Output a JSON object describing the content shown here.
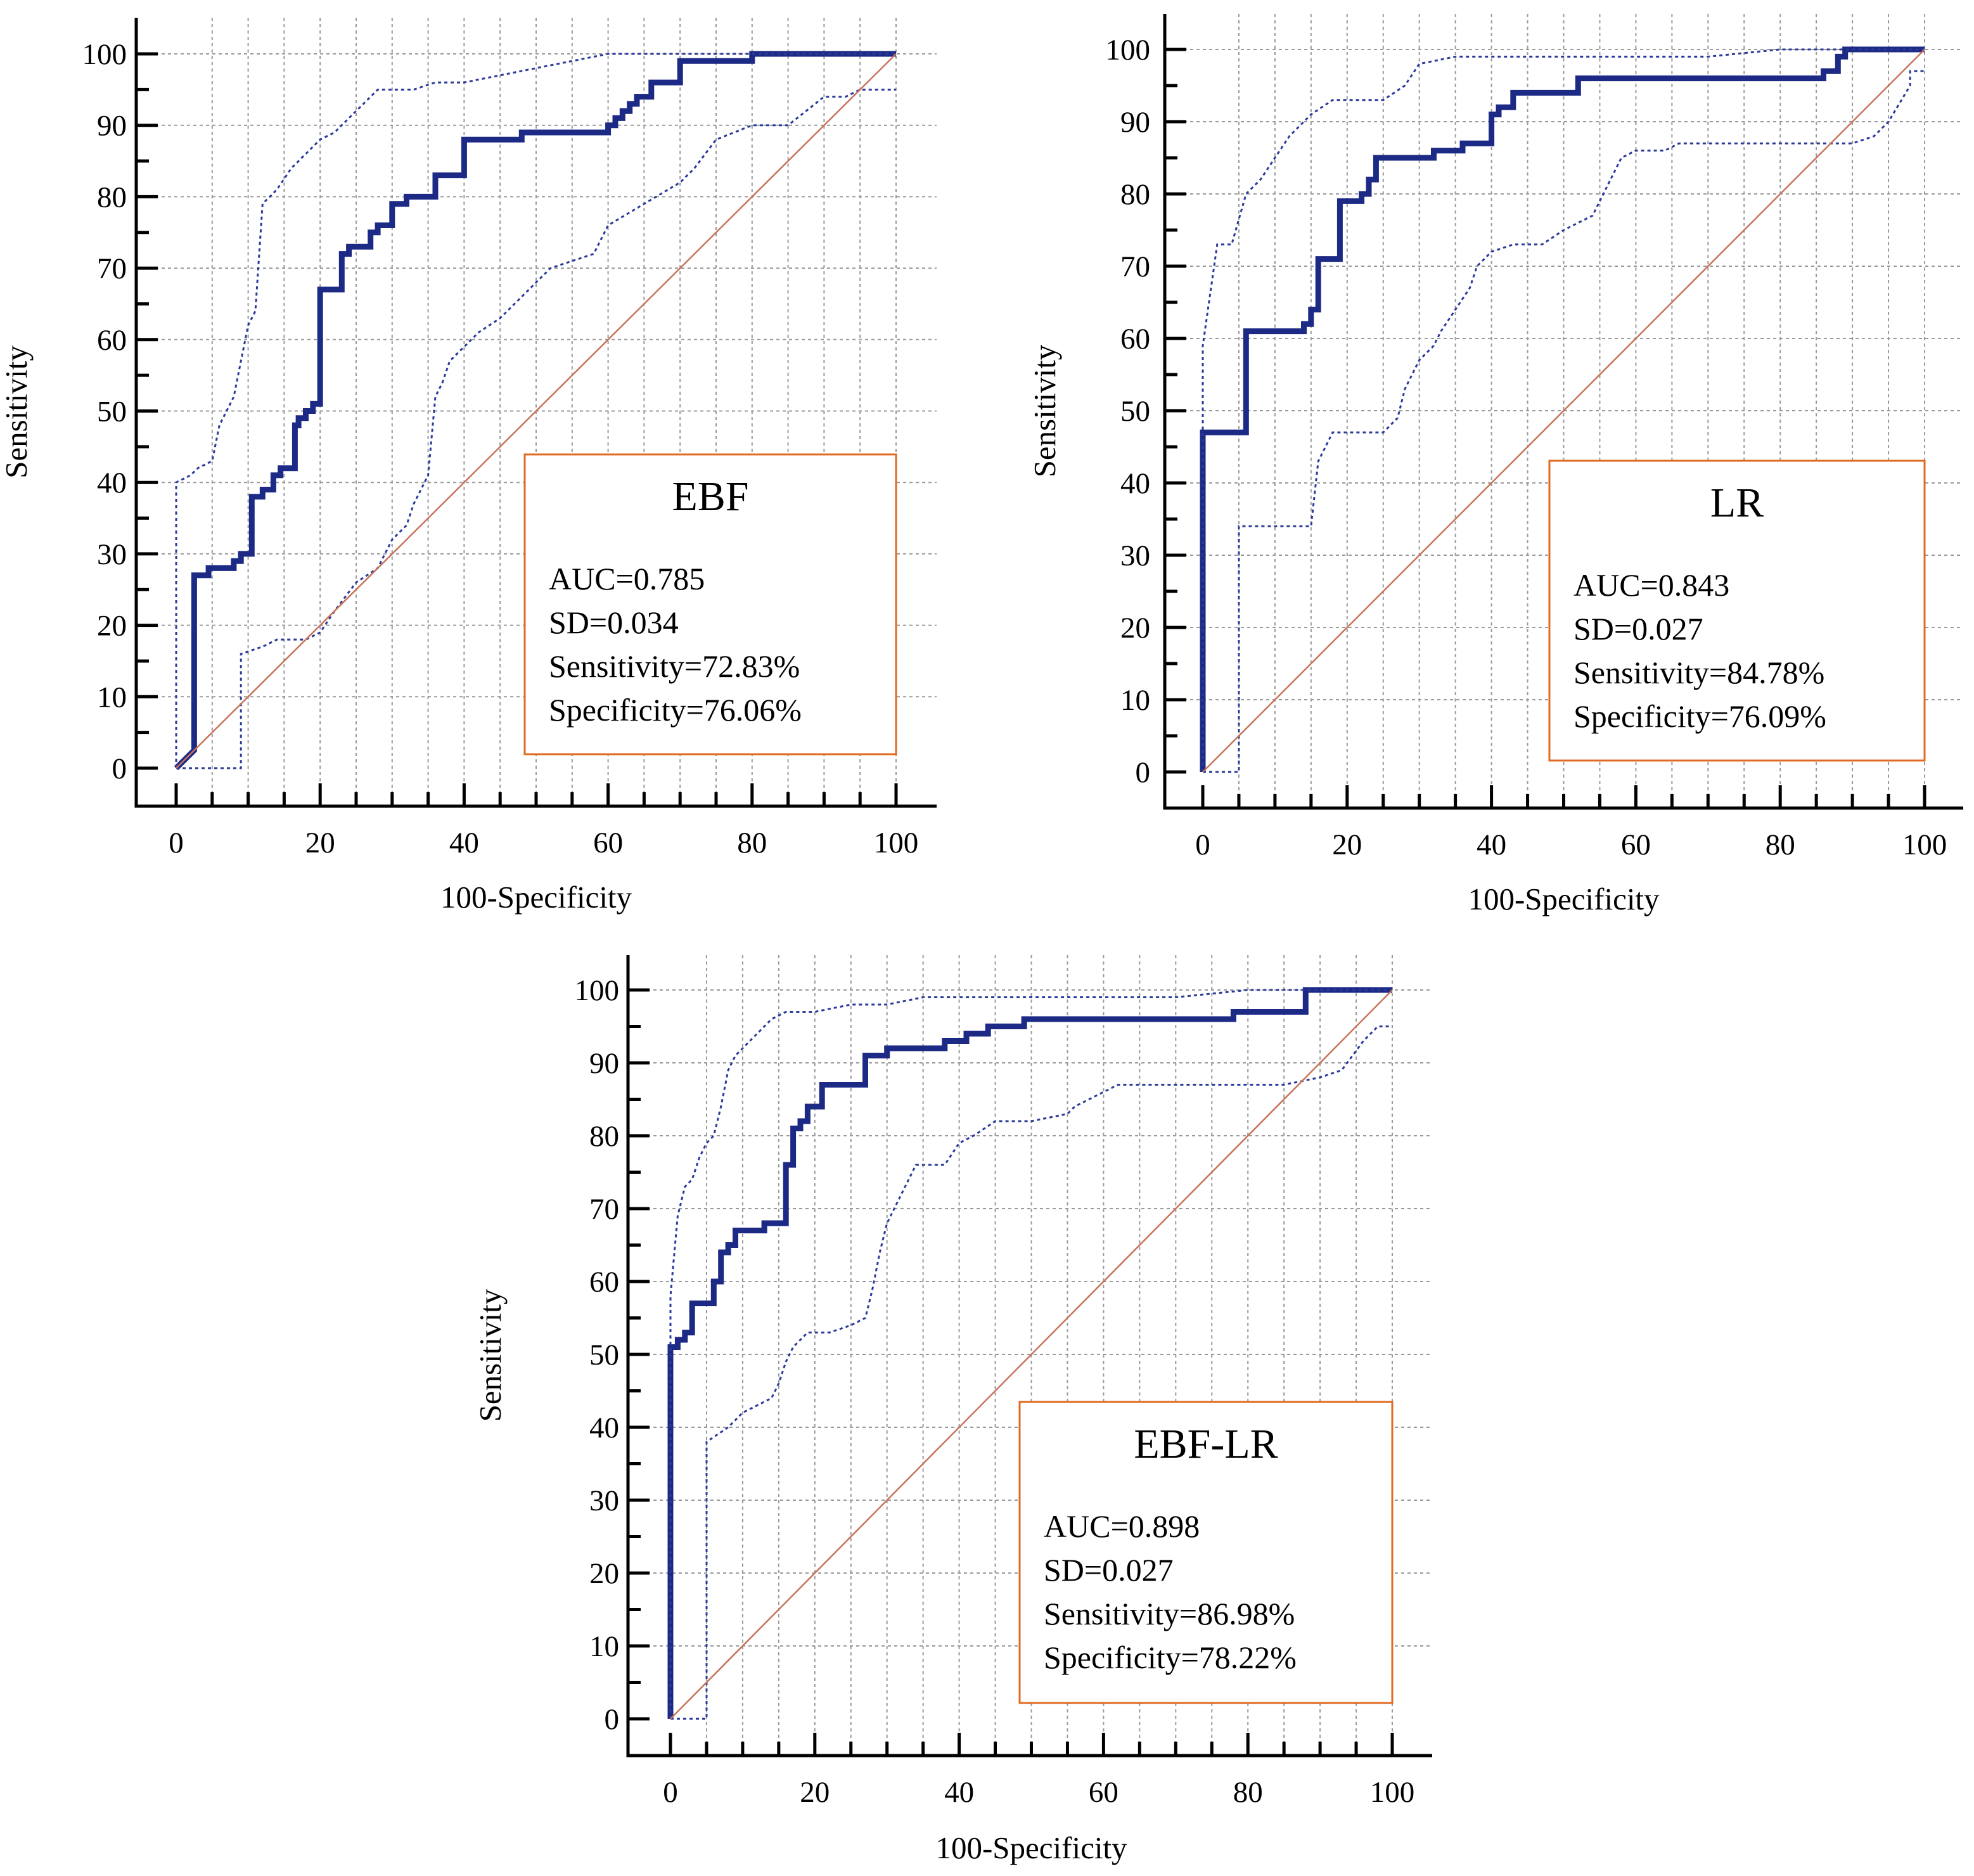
{
  "chart_data": [
    {
      "type": "line",
      "title": "EBF",
      "xlabel": "100-Specificity",
      "ylabel": "Sensitivity",
      "xlim": [
        0,
        100
      ],
      "ylim": [
        0,
        100
      ],
      "xticks": [
        "0",
        "20",
        "40",
        "60",
        "80",
        "100"
      ],
      "yticks": [
        "0",
        "10",
        "20",
        "30",
        "40",
        "50",
        "60",
        "70",
        "80",
        "90",
        "100"
      ],
      "stats": [
        "AUC=0.785",
        "SD=0.034",
        "Sensitivity=72.83%",
        "Specificity=76.06%"
      ],
      "series": [
        {
          "name": "ROC curve",
          "x": [
            0,
            1,
            1,
            2.5,
            2.5,
            4.5,
            4.5,
            8,
            8,
            9,
            9,
            10.5,
            10.5,
            12,
            12,
            13.5,
            13.5,
            14.5,
            14.5,
            16.5,
            16.5,
            17,
            17,
            18,
            18,
            19,
            19,
            20,
            20,
            21,
            21,
            23,
            23,
            24,
            24,
            27,
            27,
            28,
            28,
            30,
            30,
            32,
            32,
            36,
            36,
            40,
            40,
            48,
            48,
            60,
            60,
            61,
            61,
            62,
            62,
            63,
            63,
            64,
            64,
            66,
            66,
            70,
            70,
            80,
            80,
            100
          ],
          "y": [
            0,
            1,
            1,
            2.5,
            27,
            27,
            28,
            28,
            29,
            29,
            30,
            30,
            38,
            38,
            39,
            39,
            41,
            41,
            42,
            42,
            48,
            48,
            49,
            49,
            50,
            50,
            51,
            51,
            67,
            67,
            67,
            67,
            72,
            72,
            73,
            73,
            75,
            75,
            76,
            76,
            79,
            79,
            80,
            80,
            83,
            83,
            88,
            88,
            89,
            89,
            90,
            90,
            91,
            91,
            92,
            92,
            93,
            93,
            94,
            94,
            96,
            96,
            99,
            99,
            100,
            100
          ]
        },
        {
          "name": "Upper 95% CI",
          "x": [
            0,
            0,
            2,
            3,
            5,
            6,
            8,
            9,
            10,
            11,
            12,
            14,
            16,
            18,
            19,
            20,
            22,
            24,
            26,
            28,
            30,
            33,
            36,
            40,
            45,
            50,
            55,
            60,
            70,
            80,
            100
          ],
          "y": [
            0,
            40,
            41,
            42,
            43,
            48,
            52,
            57,
            62,
            64,
            79,
            81,
            84,
            86,
            87,
            88,
            89,
            91,
            93,
            95,
            95,
            95,
            96,
            96,
            97,
            98,
            99,
            100,
            100,
            100,
            100
          ]
        },
        {
          "name": "Lower 95% CI",
          "x": [
            0,
            9,
            9,
            12,
            14,
            15,
            18,
            20,
            22,
            25,
            28,
            30,
            32,
            33,
            35,
            36,
            37,
            38,
            40,
            42,
            45,
            48,
            50,
            52,
            55,
            58,
            60,
            65,
            70,
            72,
            75,
            80,
            85,
            90,
            93,
            95,
            98,
            100
          ],
          "y": [
            0,
            0,
            16,
            17,
            18,
            18,
            18,
            19,
            22,
            26,
            28,
            32,
            34,
            37,
            41,
            52,
            54,
            57,
            59,
            61,
            63,
            66,
            68,
            70,
            71,
            72,
            76,
            79,
            82,
            84,
            88,
            90,
            90,
            94,
            94,
            95,
            95,
            95
          ]
        },
        {
          "name": "Reference",
          "x": [
            0,
            100
          ],
          "y": [
            0,
            100
          ]
        }
      ]
    },
    {
      "type": "line",
      "title": "LR",
      "xlabel": "100-Specificity",
      "ylabel": "Sensitivity",
      "xlim": [
        0,
        100
      ],
      "ylim": [
        0,
        100
      ],
      "xticks": [
        "0",
        "20",
        "40",
        "60",
        "80",
        "100"
      ],
      "yticks": [
        "0",
        "10",
        "20",
        "30",
        "40",
        "50",
        "60",
        "70",
        "80",
        "90",
        "100"
      ],
      "stats": [
        "AUC=0.843",
        "SD=0.027",
        "Sensitivity=84.78%",
        "Specificity=76.09%"
      ],
      "series": [
        {
          "name": "ROC curve",
          "x": [
            0,
            0,
            6,
            6,
            14,
            14,
            15,
            15,
            16,
            16,
            19,
            19,
            22,
            22,
            23,
            23,
            24,
            24,
            32,
            32,
            36,
            36,
            40,
            40,
            41,
            41,
            43,
            43,
            52,
            52,
            86,
            86,
            88,
            88,
            89,
            89,
            100
          ],
          "y": [
            0,
            47,
            47,
            61,
            61,
            62,
            62,
            64,
            64,
            71,
            71,
            79,
            79,
            80,
            80,
            82,
            82,
            85,
            85,
            86,
            86,
            87,
            87,
            91,
            91,
            92,
            92,
            94,
            94,
            96,
            96,
            97,
            97,
            99,
            99,
            100,
            100
          ]
        },
        {
          "name": "Upper 95% CI",
          "x": [
            0,
            0,
            2,
            4,
            6,
            8,
            10,
            12,
            15,
            18,
            20,
            25,
            28,
            30,
            35,
            40,
            50,
            60,
            70,
            80,
            90,
            100
          ],
          "y": [
            0,
            59,
            73,
            73,
            80,
            82,
            85,
            88,
            91,
            93,
            93,
            93,
            95,
            98,
            99,
            99,
            99,
            99,
            99,
            100,
            100,
            100
          ]
        },
        {
          "name": "Lower 95% CI",
          "x": [
            0,
            5,
            5,
            15,
            16,
            18,
            22,
            25,
            27,
            28,
            30,
            32,
            33,
            35,
            37,
            38,
            40,
            43,
            45,
            47,
            50,
            52,
            54,
            56,
            58,
            60,
            64,
            66,
            70,
            80,
            85,
            88,
            90,
            93,
            95,
            98,
            98,
            100
          ],
          "y": [
            0,
            0,
            34,
            34,
            43,
            47,
            47,
            47,
            49,
            53,
            57,
            59,
            61,
            64,
            67,
            70,
            72,
            73,
            73,
            73,
            75,
            76,
            77,
            81,
            85,
            86,
            86,
            87,
            87,
            87,
            87,
            87,
            87,
            88,
            90,
            95,
            97,
            97
          ]
        },
        {
          "name": "Reference",
          "x": [
            0,
            100
          ],
          "y": [
            0,
            100
          ]
        }
      ]
    },
    {
      "type": "line",
      "title": "EBF-LR",
      "xlabel": "100-Specificity",
      "ylabel": "Sensitivity",
      "xlim": [
        0,
        100
      ],
      "ylim": [
        0,
        100
      ],
      "xticks": [
        "0",
        "20",
        "40",
        "60",
        "80",
        "100"
      ],
      "yticks": [
        "0",
        "10",
        "20",
        "30",
        "40",
        "50",
        "60",
        "70",
        "80",
        "90",
        "100"
      ],
      "stats": [
        "AUC=0.898",
        "SD=0.027",
        "Sensitivity=86.98%",
        "Specificity=78.22%"
      ],
      "series": [
        {
          "name": "ROC curve",
          "x": [
            0,
            0,
            1,
            1,
            2,
            2,
            3,
            3,
            6,
            6,
            7,
            7,
            8,
            8,
            9,
            9,
            13,
            13,
            16,
            16,
            17,
            17,
            18,
            18,
            19,
            19,
            21,
            21,
            27,
            27,
            30,
            30,
            38,
            38,
            41,
            41,
            44,
            44,
            49,
            49,
            78,
            78,
            88,
            88,
            100
          ],
          "y": [
            0,
            51,
            51,
            52,
            52,
            53,
            53,
            57,
            57,
            60,
            60,
            64,
            64,
            65,
            65,
            67,
            67,
            68,
            68,
            76,
            76,
            81,
            81,
            82,
            82,
            84,
            84,
            87,
            87,
            91,
            91,
            92,
            92,
            93,
            93,
            94,
            94,
            95,
            95,
            96,
            96,
            97,
            97,
            100,
            100
          ]
        },
        {
          "name": "Upper 95% CI",
          "x": [
            0,
            0,
            1,
            2,
            3,
            4,
            5,
            6,
            7,
            8,
            9,
            10,
            12,
            14,
            16,
            18,
            20,
            25,
            30,
            35,
            40,
            50,
            60,
            70,
            80,
            90,
            100
          ],
          "y": [
            0,
            58,
            69,
            73,
            74,
            77,
            79,
            80,
            84,
            89,
            91,
            92,
            94,
            96,
            97,
            97,
            97,
            98,
            98,
            99,
            99,
            99,
            99,
            99,
            100,
            100,
            100
          ]
        },
        {
          "name": "Lower 95% CI",
          "x": [
            0,
            5,
            5,
            8,
            10,
            12,
            14,
            15,
            16,
            17,
            18,
            19,
            20,
            22,
            25,
            27,
            28,
            29,
            30,
            31,
            32,
            33,
            34,
            35,
            37,
            38,
            40,
            42,
            45,
            50,
            55,
            56,
            58,
            60,
            62,
            65,
            70,
            80,
            85,
            90,
            93,
            96,
            98,
            100
          ],
          "y": [
            0,
            0,
            38,
            40,
            42,
            43,
            44,
            46,
            49,
            51,
            52,
            53,
            53,
            53,
            54,
            55,
            59,
            64,
            68,
            70,
            72,
            74,
            76,
            76,
            76,
            76,
            79,
            80,
            82,
            82,
            83,
            84,
            85,
            86,
            87,
            87,
            87,
            87,
            87,
            88,
            89,
            93,
            95,
            95
          ]
        },
        {
          "name": "Reference",
          "x": [
            0,
            100
          ],
          "y": [
            0,
            100
          ]
        }
      ]
    }
  ]
}
